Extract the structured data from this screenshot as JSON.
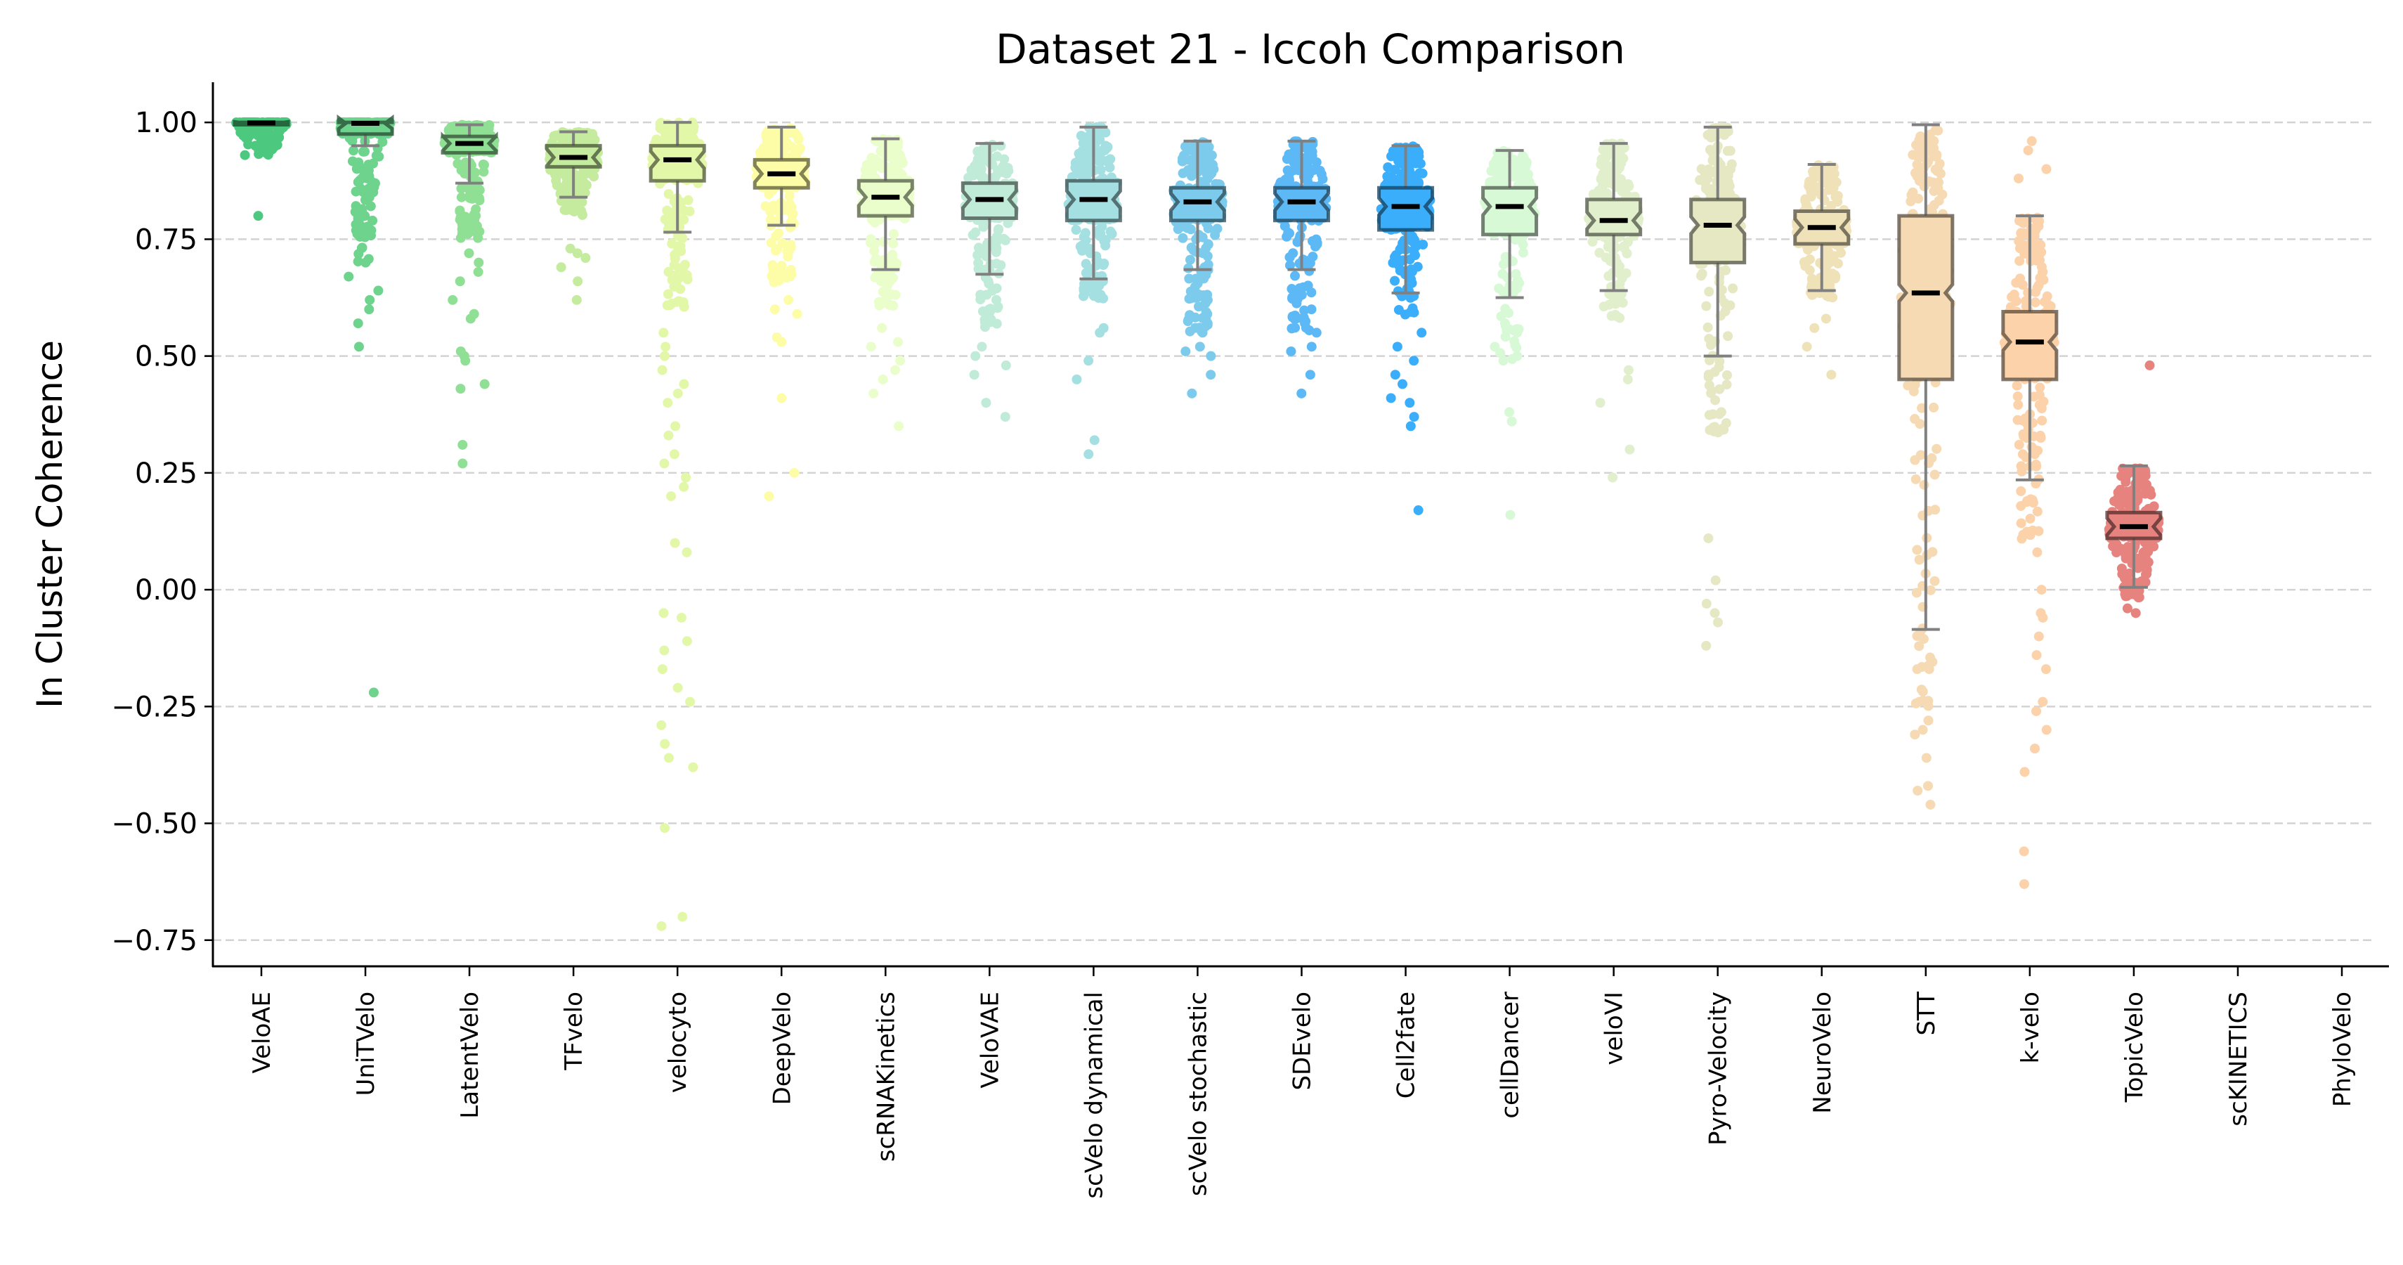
{
  "chart_data": {
    "type": "box",
    "overlay": "strip (jittered scatter)",
    "title": "Dataset 21 - Iccoh Comparison",
    "xlabel": "",
    "ylabel": "In Cluster Coherence",
    "ylim": [
      -0.806,
      1.086
    ],
    "yticks": [
      1.0,
      0.75,
      0.5,
      0.25,
      0.0,
      -0.25,
      -0.5,
      -0.75
    ],
    "ytick_labels": [
      "1.00",
      "0.75",
      "0.50",
      "0.25",
      "0.00",
      "−0.25",
      "−0.50",
      "−0.75"
    ],
    "grid": "horizontal dashed",
    "notched": true,
    "categories": [
      "VeloAE",
      "UniTVelo",
      "LatentVelo",
      "TFvelo",
      "velocyto",
      "DeepVelo",
      "scRNAKinetics",
      "VeloVAE",
      "scVelo dynamical",
      "scVelo stochastic",
      "SDEvelo",
      "Cell2fate",
      "cellDancer",
      "veloVI",
      "Pyro-Velocity",
      "NeuroVelo",
      "STT",
      "k-velo",
      "TopicVelo",
      "scKINETICS",
      "PhyloVelo"
    ],
    "series": [
      {
        "name": "VeloAE",
        "color": "#4CC97E",
        "whisker_low": 0.995,
        "q1": 0.995,
        "median": 0.999,
        "q3": 1.0,
        "whisker_high": 1.0,
        "spread": [
          0.93,
          1.0
        ],
        "outliers": [
          0.8,
          0.93,
          0.94,
          0.96
        ]
      },
      {
        "name": "UniTVelo",
        "color": "#6DD38D",
        "whisker_low": 0.95,
        "q1": 0.975,
        "median": 0.998,
        "q3": 1.0,
        "whisker_high": 1.0,
        "spread": [
          0.7,
          1.0
        ],
        "outliers": [
          -0.22,
          0.52,
          0.57,
          0.6,
          0.62,
          0.64,
          0.67,
          0.7
        ]
      },
      {
        "name": "LatentVelo",
        "color": "#8FDF95",
        "whisker_low": 0.87,
        "q1": 0.935,
        "median": 0.955,
        "q3": 0.97,
        "whisker_high": 0.995,
        "spread": [
          0.75,
          1.0
        ],
        "outliers": [
          0.27,
          0.31,
          0.43,
          0.44,
          0.49,
          0.5,
          0.51,
          0.58,
          0.59,
          0.62,
          0.66,
          0.68,
          0.7,
          0.72
        ]
      },
      {
        "name": "TFvelo",
        "color": "#C4EB9E",
        "whisker_low": 0.84,
        "q1": 0.905,
        "median": 0.925,
        "q3": 0.95,
        "whisker_high": 0.98,
        "spread": [
          0.8,
          0.99
        ],
        "outliers": [
          0.62,
          0.66,
          0.69,
          0.71,
          0.72,
          0.73
        ]
      },
      {
        "name": "velocyto",
        "color": "#E3F7A8",
        "whisker_low": 0.765,
        "q1": 0.875,
        "median": 0.92,
        "q3": 0.95,
        "whisker_high": 1.0,
        "spread": [
          0.6,
          1.0
        ],
        "outliers": [
          -0.72,
          -0.7,
          -0.51,
          -0.38,
          -0.36,
          -0.33,
          -0.29,
          -0.24,
          -0.21,
          -0.17,
          -0.13,
          -0.11,
          -0.06,
          -0.05,
          0.08,
          0.1,
          0.2,
          0.22,
          0.24,
          0.27,
          0.29,
          0.33,
          0.35,
          0.4,
          0.42,
          0.44,
          0.47,
          0.5,
          0.52,
          0.55
        ]
      },
      {
        "name": "DeepVelo",
        "color": "#FDFDA8",
        "whisker_low": 0.78,
        "q1": 0.86,
        "median": 0.89,
        "q3": 0.92,
        "whisker_high": 0.99,
        "spread": [
          0.65,
          1.0
        ],
        "outliers": [
          0.2,
          0.25,
          0.41,
          0.53,
          0.54,
          0.59,
          0.6,
          0.62
        ]
      },
      {
        "name": "scRNAKinetics",
        "color": "#EAFECB",
        "whisker_low": 0.685,
        "q1": 0.8,
        "median": 0.84,
        "q3": 0.875,
        "whisker_high": 0.965,
        "spread": [
          0.6,
          0.97
        ],
        "outliers": [
          0.35,
          0.42,
          0.45,
          0.47,
          0.49,
          0.52,
          0.53,
          0.56
        ]
      },
      {
        "name": "VeloVAE",
        "color": "#C0EBD8",
        "whisker_low": 0.675,
        "q1": 0.795,
        "median": 0.835,
        "q3": 0.87,
        "whisker_high": 0.955,
        "spread": [
          0.55,
          0.96
        ],
        "outliers": [
          0.37,
          0.4,
          0.46,
          0.48,
          0.5,
          0.52
        ]
      },
      {
        "name": "scVelo dynamical",
        "color": "#A4DFE1",
        "whisker_low": 0.665,
        "q1": 0.79,
        "median": 0.835,
        "q3": 0.875,
        "whisker_high": 0.99,
        "spread": [
          0.62,
          1.0
        ],
        "outliers": [
          0.29,
          0.32,
          0.45,
          0.49,
          0.55,
          0.56
        ]
      },
      {
        "name": "scVelo stochastic",
        "color": "#7CCBEC",
        "whisker_low": 0.685,
        "q1": 0.79,
        "median": 0.83,
        "q3": 0.86,
        "whisker_high": 0.96,
        "spread": [
          0.55,
          0.965
        ],
        "outliers": [
          0.42,
          0.46,
          0.5,
          0.51,
          0.52,
          0.55,
          0.58,
          0.59
        ]
      },
      {
        "name": "SDEvelo",
        "color": "#5CB9F5",
        "whisker_low": 0.685,
        "q1": 0.79,
        "median": 0.83,
        "q3": 0.86,
        "whisker_high": 0.96,
        "spread": [
          0.55,
          0.965
        ],
        "outliers": [
          0.42,
          0.46,
          0.51,
          0.52,
          0.55,
          0.57,
          0.58,
          0.6
        ]
      },
      {
        "name": "Cell2fate",
        "color": "#3AAEFB",
        "whisker_low": 0.635,
        "q1": 0.77,
        "median": 0.82,
        "q3": 0.86,
        "whisker_high": 0.95,
        "spread": [
          0.58,
          0.955
        ],
        "outliers": [
          0.17,
          0.35,
          0.37,
          0.4,
          0.41,
          0.44,
          0.46,
          0.49,
          0.52,
          0.55
        ]
      },
      {
        "name": "cellDancer",
        "color": "#D8F9D6",
        "whisker_low": 0.625,
        "q1": 0.76,
        "median": 0.82,
        "q3": 0.86,
        "whisker_high": 0.94,
        "spread": [
          0.48,
          0.95
        ],
        "outliers": [
          0.16,
          0.36,
          0.38,
          0.5,
          0.52
        ]
      },
      {
        "name": "veloVI",
        "color": "#E1EFCC",
        "whisker_low": 0.64,
        "q1": 0.76,
        "median": 0.79,
        "q3": 0.835,
        "whisker_high": 0.955,
        "spread": [
          0.58,
          0.96
        ],
        "outliers": [
          0.24,
          0.3,
          0.4,
          0.45,
          0.47
        ]
      },
      {
        "name": "Pyro-Velocity",
        "color": "#E6E8C4",
        "whisker_low": 0.5,
        "q1": 0.7,
        "median": 0.78,
        "q3": 0.835,
        "whisker_high": 0.99,
        "spread": [
          0.33,
          1.0
        ],
        "outliers": [
          -0.12,
          -0.07,
          -0.05,
          -0.03,
          0.02,
          0.11
        ]
      },
      {
        "name": "NeuroVelo",
        "color": "#EFE1B8",
        "whisker_low": 0.64,
        "q1": 0.74,
        "median": 0.775,
        "q3": 0.81,
        "whisker_high": 0.91,
        "spread": [
          0.62,
          0.97
        ],
        "outliers": [
          0.46,
          0.52,
          0.56,
          0.58
        ]
      },
      {
        "name": "STT",
        "color": "#F6DAB3",
        "whisker_low": -0.085,
        "q1": 0.45,
        "median": 0.635,
        "q3": 0.8,
        "whisker_high": 0.995,
        "spread": [
          -0.25,
          1.0
        ],
        "outliers": [
          -0.46,
          -0.43,
          -0.42,
          -0.36,
          -0.31,
          -0.3,
          -0.28,
          -0.24
        ]
      },
      {
        "name": "k-velo",
        "color": "#FCD2AA",
        "whisker_low": 0.235,
        "q1": 0.45,
        "median": 0.53,
        "q3": 0.595,
        "whisker_high": 0.8,
        "spread": [
          0.1,
          0.97
        ],
        "outliers": [
          -0.63,
          -0.56,
          -0.39,
          -0.34,
          -0.3,
          -0.26,
          -0.24,
          -0.17,
          -0.14,
          -0.1,
          -0.06,
          -0.05,
          0.0,
          0.08,
          0.88,
          0.9,
          0.94,
          0.96
        ]
      },
      {
        "name": "TopicVelo",
        "color": "#E7837F",
        "whisker_low": 0.005,
        "q1": 0.11,
        "median": 0.135,
        "q3": 0.165,
        "whisker_high": 0.265,
        "spread": [
          -0.02,
          0.43
        ],
        "outliers": [
          -0.05,
          -0.04,
          0.48
        ]
      },
      {
        "name": "scKINETICS",
        "color": "#E7837F",
        "empty": true
      },
      {
        "name": "PhyloVelo",
        "color": "#E7837F",
        "empty": true
      }
    ]
  }
}
